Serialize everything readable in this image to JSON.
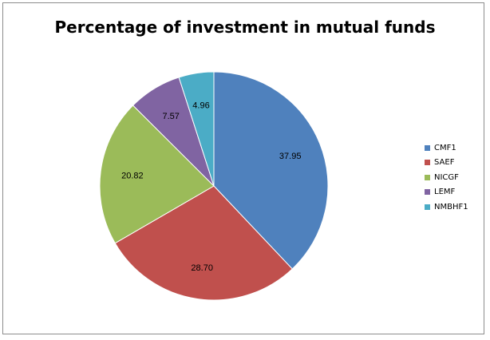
{
  "chart_data": {
    "type": "pie",
    "title": "Percentage of investment in mutual funds",
    "categories": [
      "CMF1",
      "SAEF",
      "NICGF",
      "LEMF",
      "NMBHF1"
    ],
    "values": [
      37.95,
      28.7,
      20.82,
      7.57,
      4.96
    ],
    "value_labels": [
      "37.95",
      "28.70",
      "20.82",
      "7.57",
      "4.96"
    ],
    "colors": [
      "#4f81bd",
      "#c0504d",
      "#9bbb59",
      "#8064a2",
      "#4bacc6"
    ],
    "start_angle_deg": 0,
    "direction": "clockwise",
    "legend_position": "right"
  }
}
